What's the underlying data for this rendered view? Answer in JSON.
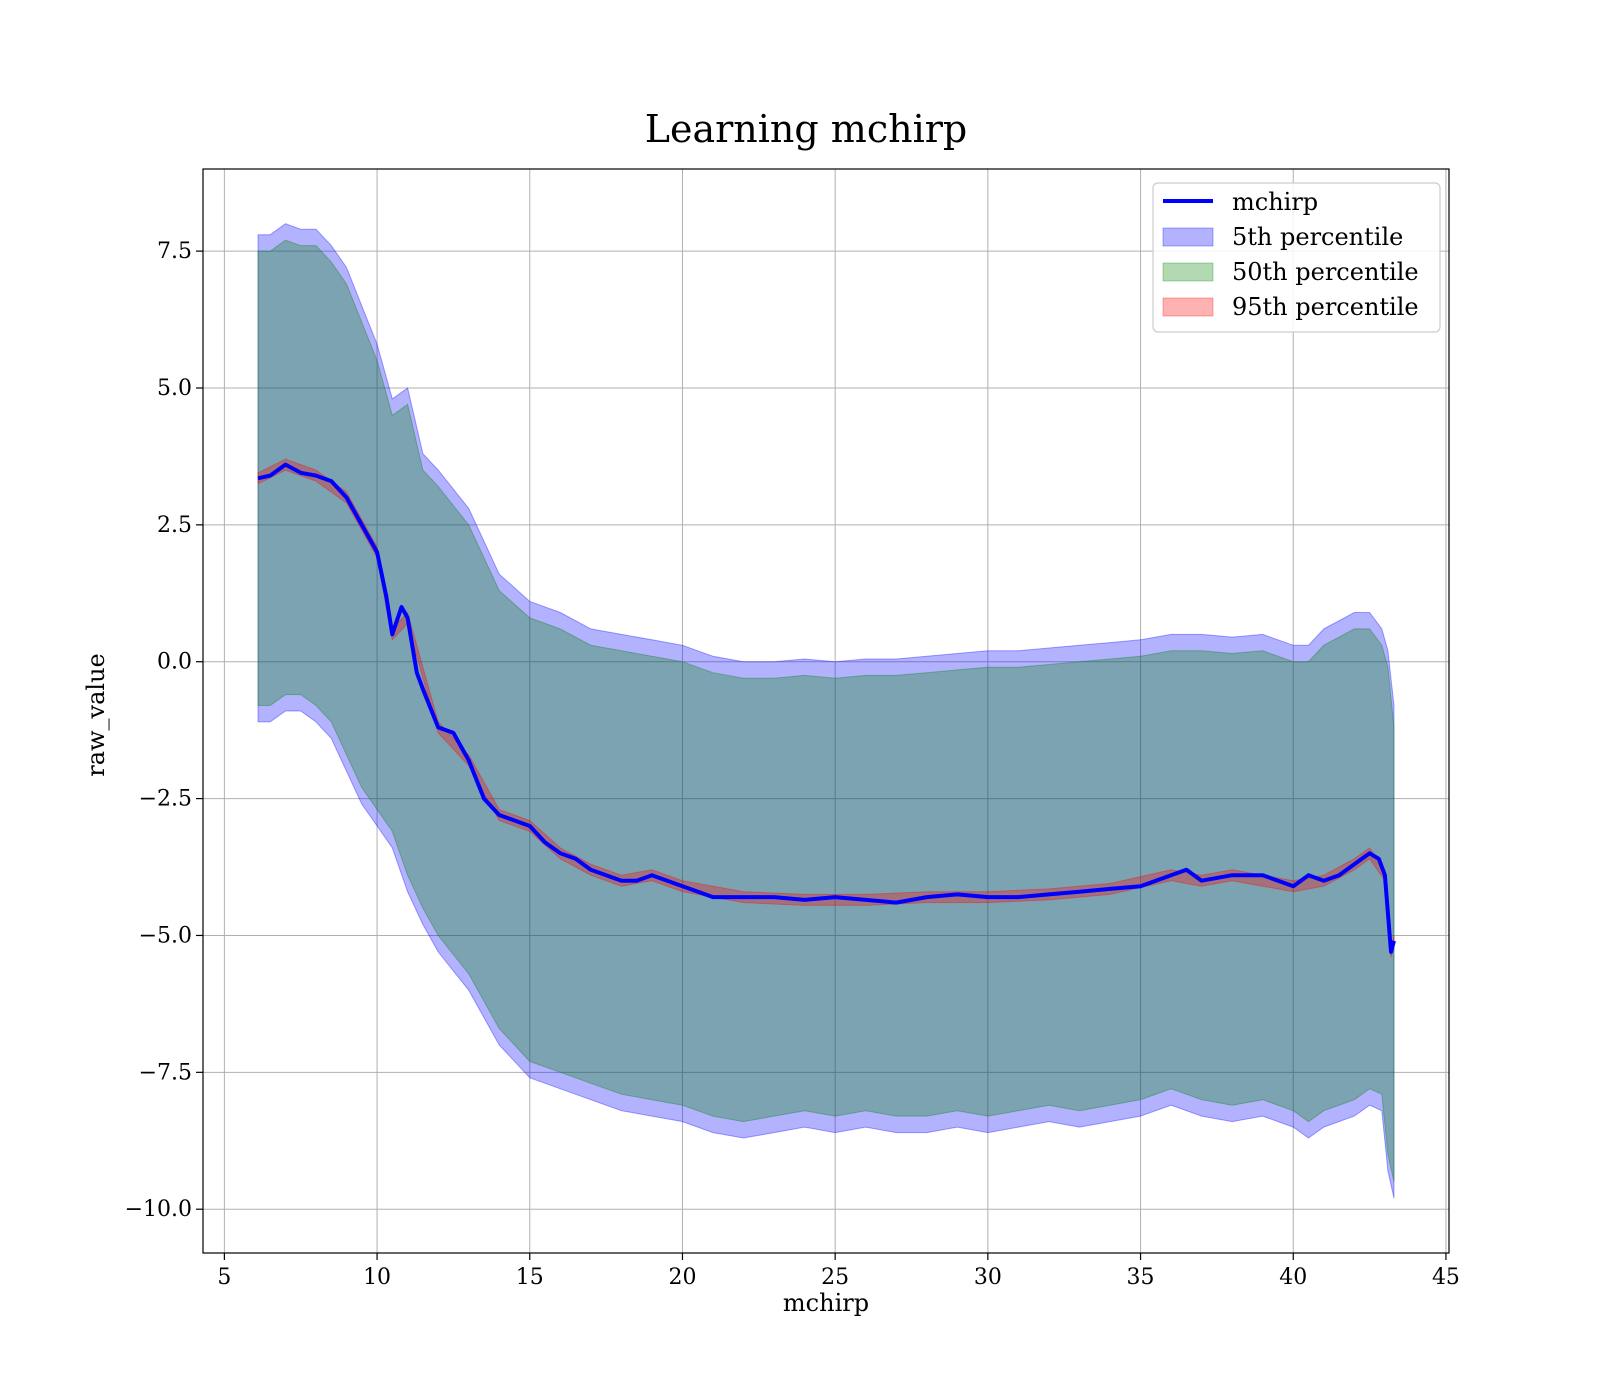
{
  "chart_data": {
    "type": "area",
    "title": "Learning mchirp",
    "xlabel": "mchirp",
    "ylabel": "raw_value",
    "xlim": [
      4.3,
      45.1
    ],
    "ylim": [
      -10.8,
      9.0
    ],
    "xticks": [
      5,
      10,
      15,
      20,
      25,
      30,
      35,
      40,
      45
    ],
    "xtick_labels": [
      "5",
      "10",
      "15",
      "20",
      "25",
      "30",
      "35",
      "40",
      "45"
    ],
    "yticks": [
      7.5,
      5.0,
      2.5,
      0.0,
      -2.5,
      -5.0,
      -7.5,
      -10.0
    ],
    "ytick_labels": [
      "7.5",
      "5.0",
      "2.5",
      "0.0",
      "−2.5",
      "−5.0",
      "−7.5",
      "−10.0"
    ],
    "grid": true,
    "legend_position": "top-right",
    "colors": {
      "line": "#0000ff",
      "band_5th": "#0000ff",
      "band_50th": "#008000",
      "band_95th": "#ff0000",
      "grid": "#b0b0b0"
    },
    "series": [
      {
        "name": "mchirp",
        "kind": "line",
        "x": [
          6.1,
          6.5,
          7.0,
          7.5,
          8.0,
          8.5,
          9.0,
          9.5,
          10.0,
          10.3,
          10.5,
          10.8,
          11.0,
          11.3,
          11.5,
          12.0,
          12.5,
          13.0,
          13.5,
          14.0,
          14.5,
          15.0,
          15.5,
          16.0,
          16.5,
          17.0,
          17.5,
          18.0,
          18.5,
          19.0,
          19.5,
          20.0,
          21.0,
          22.0,
          23.0,
          24.0,
          25.0,
          26.0,
          27.0,
          28.0,
          29.0,
          30.0,
          31.0,
          32.0,
          33.0,
          34.0,
          35.0,
          35.5,
          36.0,
          36.5,
          37.0,
          38.0,
          39.0,
          40.0,
          40.5,
          41.0,
          41.5,
          42.0,
          42.5,
          42.8,
          43.0,
          43.2,
          43.3
        ],
        "y": [
          3.35,
          3.4,
          3.6,
          3.45,
          3.4,
          3.3,
          3.0,
          2.5,
          2.0,
          1.2,
          0.5,
          1.0,
          0.8,
          -0.2,
          -0.5,
          -1.2,
          -1.3,
          -1.8,
          -2.5,
          -2.8,
          -2.9,
          -3.0,
          -3.3,
          -3.5,
          -3.6,
          -3.8,
          -3.9,
          -4.0,
          -4.0,
          -3.9,
          -4.0,
          -4.1,
          -4.3,
          -4.3,
          -4.3,
          -4.35,
          -4.3,
          -4.35,
          -4.4,
          -4.3,
          -4.25,
          -4.3,
          -4.3,
          -4.25,
          -4.2,
          -4.15,
          -4.1,
          -4.0,
          -3.9,
          -3.8,
          -4.0,
          -3.9,
          -3.9,
          -4.1,
          -3.9,
          -4.0,
          -3.9,
          -3.7,
          -3.5,
          -3.6,
          -3.9,
          -5.3,
          -5.1
        ]
      },
      {
        "name": "5th percentile",
        "kind": "band",
        "x": [
          6.1,
          6.5,
          7.0,
          7.5,
          8.0,
          8.5,
          9.0,
          9.5,
          10.0,
          10.5,
          11.0,
          11.5,
          12.0,
          13.0,
          14.0,
          15.0,
          16.0,
          17.0,
          18.0,
          19.0,
          20.0,
          21.0,
          22.0,
          23.0,
          24.0,
          25.0,
          26.0,
          27.0,
          28.0,
          29.0,
          30.0,
          31.0,
          32.0,
          33.0,
          34.0,
          35.0,
          36.0,
          37.0,
          38.0,
          39.0,
          40.0,
          40.5,
          41.0,
          42.0,
          42.5,
          42.9,
          43.1,
          43.3
        ],
        "lower": [
          -1.1,
          -1.1,
          -0.9,
          -0.9,
          -1.1,
          -1.4,
          -2.0,
          -2.6,
          -3.0,
          -3.4,
          -4.2,
          -4.8,
          -5.3,
          -6.0,
          -7.0,
          -7.6,
          -7.8,
          -8.0,
          -8.2,
          -8.3,
          -8.4,
          -8.6,
          -8.7,
          -8.6,
          -8.5,
          -8.6,
          -8.5,
          -8.6,
          -8.6,
          -8.5,
          -8.6,
          -8.5,
          -8.4,
          -8.5,
          -8.4,
          -8.3,
          -8.1,
          -8.3,
          -8.4,
          -8.3,
          -8.5,
          -8.7,
          -8.5,
          -8.3,
          -8.1,
          -8.2,
          -9.3,
          -9.8
        ],
        "upper": [
          7.8,
          7.8,
          8.0,
          7.9,
          7.9,
          7.6,
          7.2,
          6.5,
          5.8,
          4.8,
          5.0,
          3.8,
          3.5,
          2.8,
          1.6,
          1.1,
          0.9,
          0.6,
          0.5,
          0.4,
          0.3,
          0.1,
          0.0,
          0.0,
          0.05,
          0.0,
          0.05,
          0.05,
          0.1,
          0.15,
          0.2,
          0.2,
          0.25,
          0.3,
          0.35,
          0.4,
          0.5,
          0.5,
          0.45,
          0.5,
          0.3,
          0.3,
          0.6,
          0.9,
          0.9,
          0.6,
          0.2,
          -0.8
        ]
      },
      {
        "name": "50th percentile",
        "kind": "band",
        "x": [
          6.1,
          6.5,
          7.0,
          7.5,
          8.0,
          8.5,
          9.0,
          9.5,
          10.0,
          10.5,
          11.0,
          11.5,
          12.0,
          13.0,
          14.0,
          15.0,
          16.0,
          17.0,
          18.0,
          19.0,
          20.0,
          21.0,
          22.0,
          23.0,
          24.0,
          25.0,
          26.0,
          27.0,
          28.0,
          29.0,
          30.0,
          31.0,
          32.0,
          33.0,
          34.0,
          35.0,
          36.0,
          37.0,
          38.0,
          39.0,
          40.0,
          40.5,
          41.0,
          42.0,
          42.5,
          42.9,
          43.1,
          43.3
        ],
        "lower": [
          -0.8,
          -0.8,
          -0.6,
          -0.6,
          -0.8,
          -1.1,
          -1.7,
          -2.3,
          -2.7,
          -3.1,
          -3.9,
          -4.5,
          -5.0,
          -5.7,
          -6.7,
          -7.3,
          -7.5,
          -7.7,
          -7.9,
          -8.0,
          -8.1,
          -8.3,
          -8.4,
          -8.3,
          -8.2,
          -8.3,
          -8.2,
          -8.3,
          -8.3,
          -8.2,
          -8.3,
          -8.2,
          -8.1,
          -8.2,
          -8.1,
          -8.0,
          -7.8,
          -8.0,
          -8.1,
          -8.0,
          -8.2,
          -8.4,
          -8.2,
          -8.0,
          -7.8,
          -7.9,
          -9.0,
          -9.5
        ],
        "upper": [
          7.5,
          7.5,
          7.7,
          7.6,
          7.6,
          7.3,
          6.9,
          6.2,
          5.5,
          4.5,
          4.7,
          3.5,
          3.2,
          2.5,
          1.3,
          0.8,
          0.6,
          0.3,
          0.2,
          0.1,
          0.0,
          -0.2,
          -0.3,
          -0.3,
          -0.25,
          -0.3,
          -0.25,
          -0.25,
          -0.2,
          -0.15,
          -0.1,
          -0.1,
          -0.05,
          0.0,
          0.05,
          0.1,
          0.2,
          0.2,
          0.15,
          0.2,
          0.0,
          0.0,
          0.3,
          0.6,
          0.6,
          0.3,
          -0.1,
          -1.2
        ]
      },
      {
        "name": "95th percentile",
        "kind": "band",
        "x": [
          6.1,
          7.0,
          8.0,
          9.0,
          10.0,
          10.5,
          11.0,
          12.0,
          13.0,
          14.0,
          15.0,
          16.0,
          17.0,
          18.0,
          19.0,
          20.0,
          22.0,
          24.0,
          26.0,
          28.0,
          30.0,
          32.0,
          34.0,
          36.0,
          37.0,
          38.0,
          40.0,
          41.0,
          42.0,
          42.5,
          43.0,
          43.2,
          43.3
        ],
        "lower": [
          3.25,
          3.5,
          3.3,
          2.9,
          1.9,
          0.4,
          0.7,
          -1.3,
          -1.9,
          -2.9,
          -3.1,
          -3.6,
          -3.9,
          -4.1,
          -4.0,
          -4.2,
          -4.4,
          -4.45,
          -4.45,
          -4.4,
          -4.4,
          -4.35,
          -4.25,
          -4.0,
          -4.1,
          -4.0,
          -4.2,
          -4.1,
          -3.8,
          -3.6,
          -4.0,
          -5.4,
          -5.2
        ],
        "upper": [
          3.45,
          3.7,
          3.5,
          3.1,
          2.1,
          0.6,
          0.9,
          -1.1,
          -1.7,
          -2.7,
          -2.9,
          -3.4,
          -3.7,
          -3.9,
          -3.8,
          -4.0,
          -4.2,
          -4.25,
          -4.25,
          -4.2,
          -4.2,
          -4.15,
          -4.05,
          -3.8,
          -3.9,
          -3.8,
          -4.0,
          -3.9,
          -3.6,
          -3.4,
          -3.8,
          -5.2,
          -5.0
        ]
      }
    ]
  }
}
